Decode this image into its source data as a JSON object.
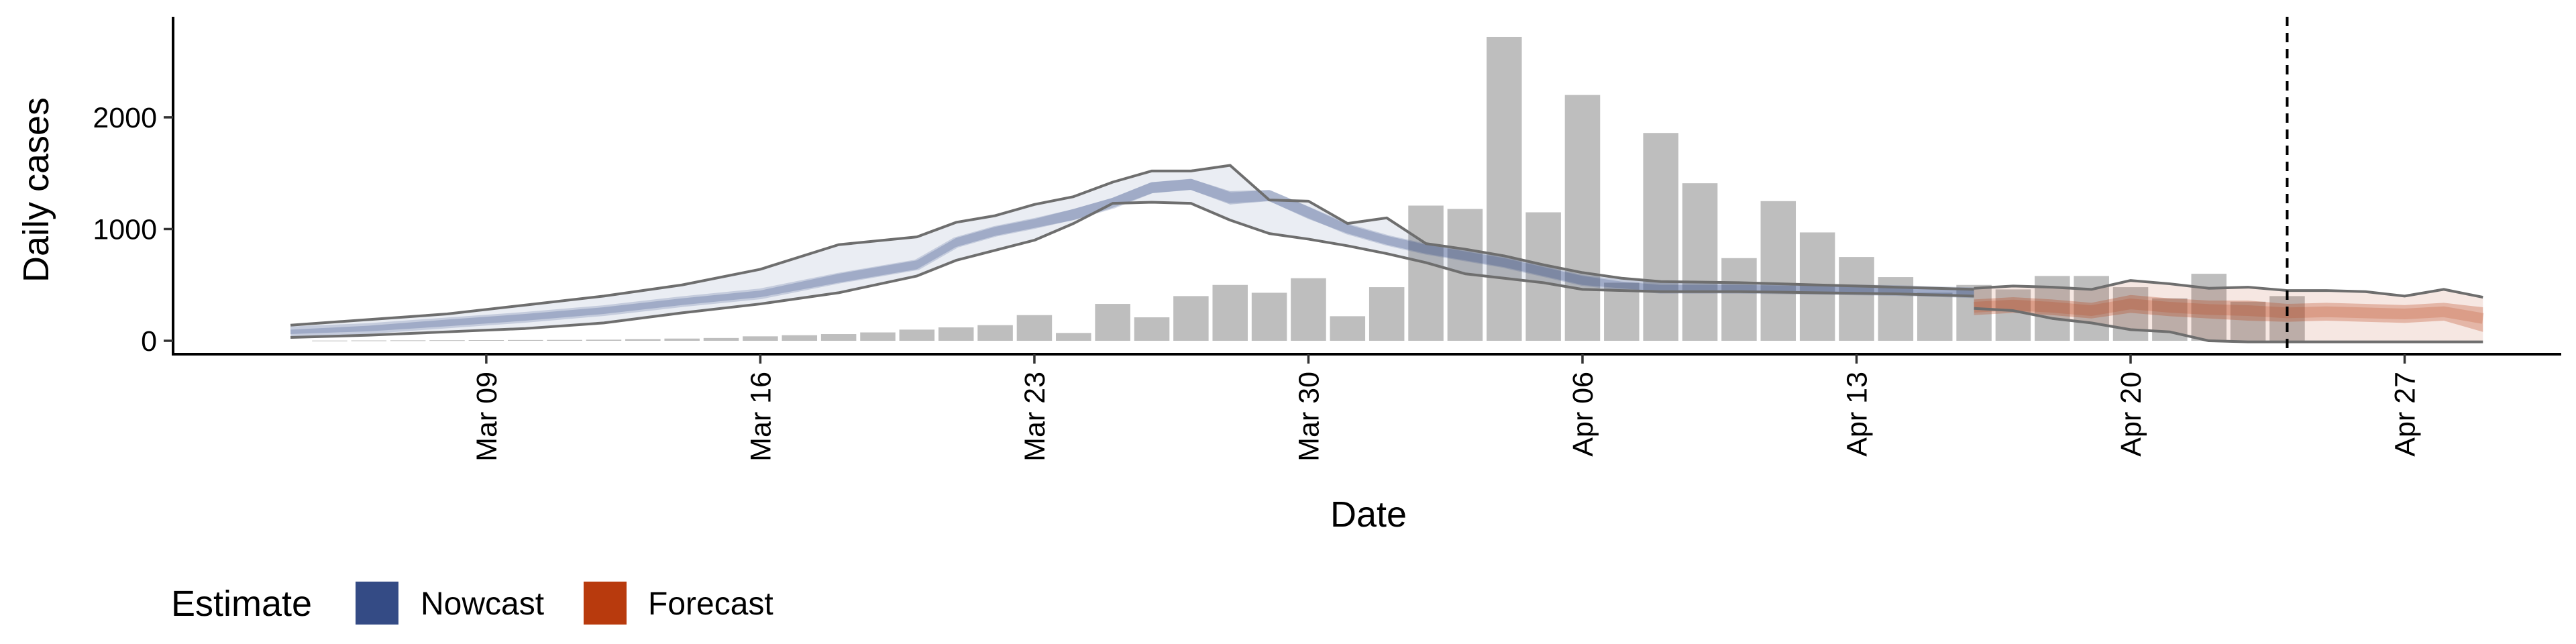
{
  "chart_data": {
    "type": "bar",
    "xlabel": "Date",
    "ylabel": "Daily cases",
    "x_ticks": [
      "Mar 09",
      "Mar 16",
      "Mar 23",
      "Mar 30",
      "Apr 06",
      "Apr 13",
      "Apr 20",
      "Apr 27"
    ],
    "y_ticks": [
      "0",
      "1000",
      "2000"
    ],
    "ylim": [
      -120,
      2900
    ],
    "xlim": [
      "2020-03-01",
      "2020-05-01"
    ],
    "grid": false,
    "legend_position": "bottom-left",
    "legend": {
      "title": "Estimate",
      "items": [
        {
          "label": "Nowcast",
          "color": "#344b85"
        },
        {
          "label": "Forecast",
          "color": "#b83a0d"
        }
      ]
    },
    "reference_line": {
      "date": "2020-04-24",
      "style": "dashed"
    },
    "colors": {
      "bars": "#bebebe",
      "nowcast": "#344b85",
      "forecast": "#b83a0d",
      "interval_line": "#6e6e6e"
    },
    "bars": {
      "dates": [
        "2020-03-05",
        "2020-03-06",
        "2020-03-07",
        "2020-03-08",
        "2020-03-09",
        "2020-03-10",
        "2020-03-11",
        "2020-03-12",
        "2020-03-13",
        "2020-03-14",
        "2020-03-15",
        "2020-03-16",
        "2020-03-17",
        "2020-03-18",
        "2020-03-19",
        "2020-03-20",
        "2020-03-21",
        "2020-03-22",
        "2020-03-23",
        "2020-03-24",
        "2020-03-25",
        "2020-03-26",
        "2020-03-27",
        "2020-03-28",
        "2020-03-29",
        "2020-03-30",
        "2020-03-31",
        "2020-04-01",
        "2020-04-02",
        "2020-04-03",
        "2020-04-04",
        "2020-04-05",
        "2020-04-06",
        "2020-04-07",
        "2020-04-08",
        "2020-04-09",
        "2020-04-10",
        "2020-04-11",
        "2020-04-12",
        "2020-04-13",
        "2020-04-14",
        "2020-04-15",
        "2020-04-16",
        "2020-04-17",
        "2020-04-18",
        "2020-04-19",
        "2020-04-20",
        "2020-04-21",
        "2020-04-22",
        "2020-04-23",
        "2020-04-24"
      ],
      "values": [
        2,
        3,
        4,
        5,
        6,
        7,
        8,
        10,
        15,
        20,
        25,
        40,
        50,
        60,
        75,
        100,
        120,
        140,
        230,
        70,
        330,
        210,
        400,
        500,
        430,
        560,
        220,
        480,
        1210,
        1180,
        2720,
        1150,
        2200,
        520,
        1860,
        1410,
        740,
        1250,
        970,
        750,
        570,
        430,
        500,
        460,
        580,
        580,
        480,
        380,
        600,
        350,
        400
      ]
    },
    "nowcast": {
      "dates": [
        "2020-03-04",
        "2020-03-06",
        "2020-03-08",
        "2020-03-10",
        "2020-03-12",
        "2020-03-14",
        "2020-03-16",
        "2020-03-18",
        "2020-03-20",
        "2020-03-21",
        "2020-03-22",
        "2020-03-23",
        "2020-03-24",
        "2020-03-25",
        "2020-03-26",
        "2020-03-27",
        "2020-03-28",
        "2020-03-29",
        "2020-03-30",
        "2020-03-31",
        "2020-04-01",
        "2020-04-02",
        "2020-04-03",
        "2020-04-04",
        "2020-04-05",
        "2020-04-06",
        "2020-04-07",
        "2020-04-08",
        "2020-04-10",
        "2020-04-12",
        "2020-04-14",
        "2020-04-16"
      ],
      "median": [
        80,
        110,
        160,
        210,
        270,
        350,
        420,
        560,
        680,
        880,
        980,
        1050,
        1130,
        1230,
        1370,
        1400,
        1280,
        1300,
        1150,
        1000,
        900,
        820,
        760,
        700,
        620,
        540,
        500,
        470,
        470,
        460,
        450,
        430
      ],
      "inner_lower": [
        60,
        85,
        130,
        180,
        240,
        320,
        390,
        520,
        640,
        840,
        940,
        1010,
        1080,
        1190,
        1320,
        1350,
        1220,
        1250,
        1090,
        960,
        860,
        780,
        720,
        660,
        580,
        500,
        470,
        440,
        440,
        430,
        420,
        410
      ],
      "inner_upper": [
        100,
        135,
        190,
        240,
        300,
        380,
        450,
        600,
        720,
        920,
        1020,
        1090,
        1180,
        1280,
        1420,
        1450,
        1340,
        1350,
        1200,
        1040,
        940,
        860,
        800,
        740,
        660,
        580,
        530,
        500,
        500,
        490,
        480,
        450
      ],
      "outer_lower": [
        30,
        50,
        80,
        110,
        160,
        250,
        330,
        430,
        580,
        720,
        810,
        900,
        1050,
        1230,
        1240,
        1230,
        1080,
        960,
        910,
        850,
        780,
        700,
        600,
        560,
        520,
        460,
        450,
        440,
        440,
        430,
        420,
        400
      ],
      "outer_upper": [
        140,
        190,
        240,
        320,
        400,
        500,
        640,
        860,
        930,
        1060,
        1120,
        1220,
        1290,
        1420,
        1520,
        1520,
        1570,
        1260,
        1250,
        1050,
        1100,
        870,
        820,
        760,
        680,
        610,
        560,
        530,
        520,
        500,
        480,
        460
      ]
    },
    "forecast": {
      "dates": [
        "2020-04-16",
        "2020-04-17",
        "2020-04-18",
        "2020-04-19",
        "2020-04-20",
        "2020-04-21",
        "2020-04-22",
        "2020-04-23",
        "2020-04-24",
        "2020-04-25",
        "2020-04-26",
        "2020-04-27",
        "2020-04-28",
        "2020-04-29"
      ],
      "median": [
        300,
        320,
        300,
        270,
        330,
        300,
        280,
        270,
        250,
        260,
        250,
        240,
        260,
        200
      ],
      "inner_lower": [
        230,
        250,
        230,
        200,
        250,
        220,
        200,
        180,
        170,
        180,
        170,
        160,
        180,
        80
      ],
      "inner_upper": [
        370,
        390,
        370,
        340,
        410,
        380,
        360,
        360,
        330,
        340,
        330,
        320,
        340,
        300
      ],
      "outer_lower": [
        290,
        270,
        200,
        160,
        100,
        80,
        0,
        -10,
        -10,
        -10,
        -10,
        -10,
        -10,
        -10
      ],
      "outer_upper": [
        470,
        490,
        480,
        460,
        540,
        510,
        470,
        480,
        450,
        450,
        440,
        400,
        460,
        390
      ]
    }
  }
}
